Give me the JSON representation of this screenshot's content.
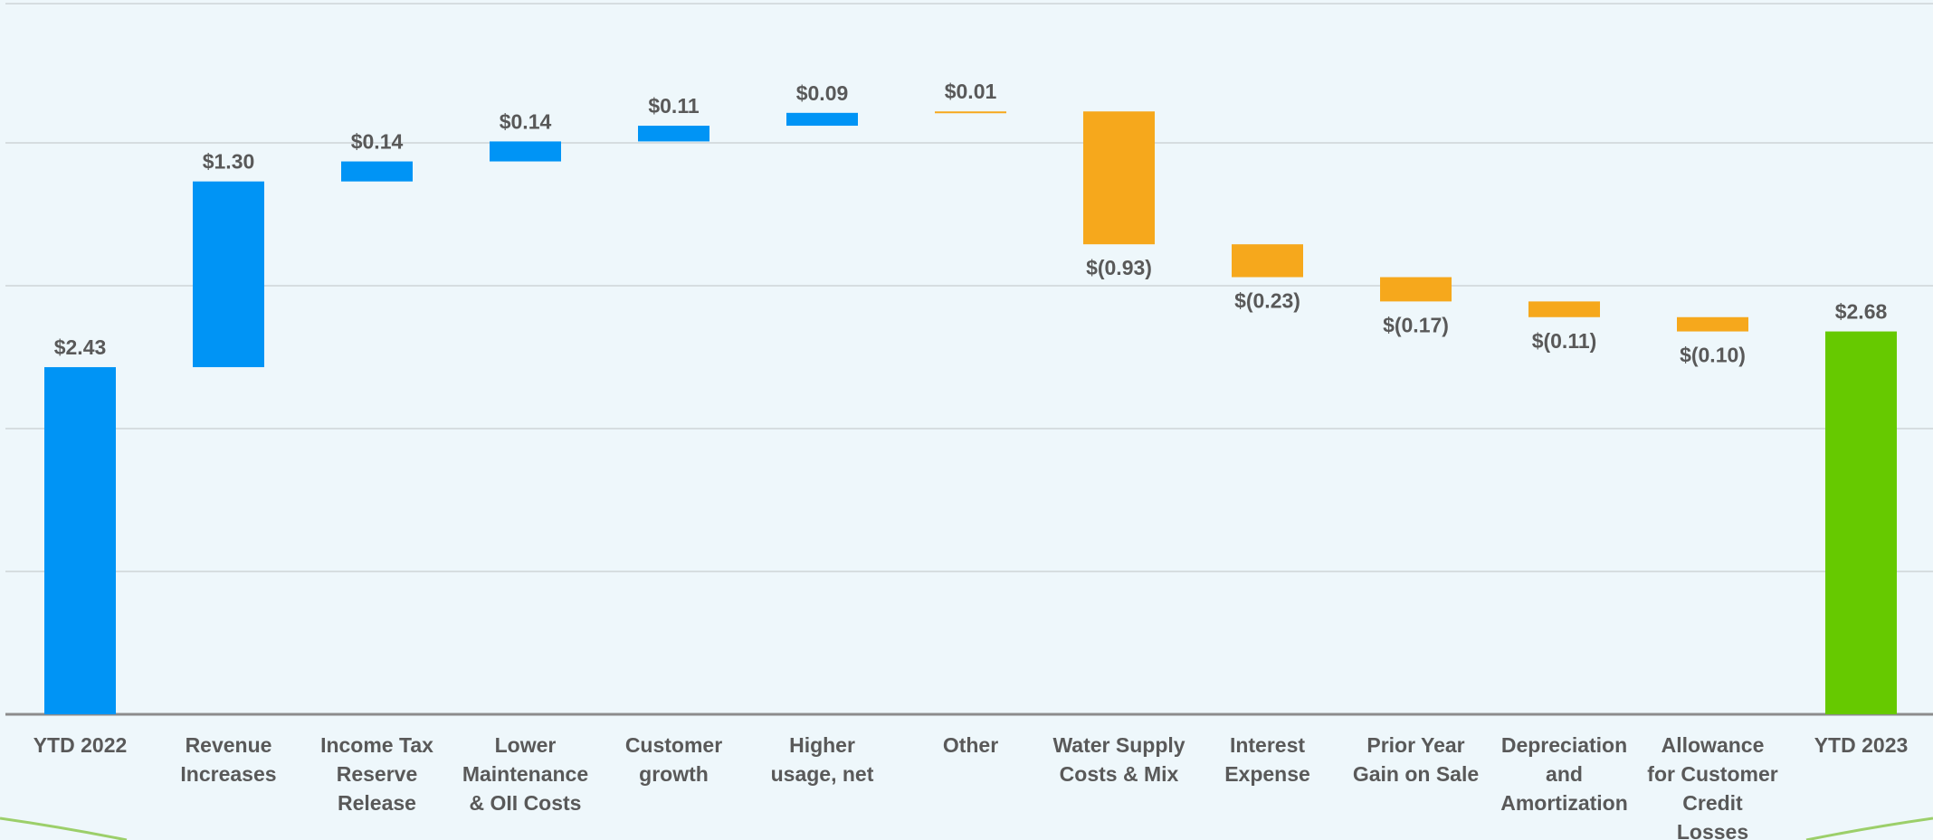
{
  "chart_data": {
    "type": "waterfall",
    "categories": [
      "YTD 2022",
      "Revenue Increases",
      "Income Tax Reserve Release",
      "Lower Maintenance & OII Costs",
      "Customer growth",
      "Higher usage, net",
      "Other",
      "Water Supply Costs & Mix",
      "Interest Expense",
      "Prior Year Gain on Sale",
      "Depreciation and Amortization",
      "Allowance for Customer Credit Losses",
      "YTD 2023"
    ],
    "values": [
      2.43,
      1.3,
      0.14,
      0.14,
      0.11,
      0.09,
      0.01,
      -0.93,
      -0.23,
      -0.17,
      -0.11,
      -0.1,
      2.68
    ],
    "value_labels": [
      "$2.43",
      "$1.30",
      "$0.14",
      "$0.14",
      "$0.11",
      "$0.09",
      "$0.01",
      "$(0.93)",
      "$(0.23)",
      "$(0.17)",
      "$(0.11)",
      "$(0.10)",
      "$2.68"
    ],
    "colors": [
      "#0094f5",
      "#0094f5",
      "#0094f5",
      "#0094f5",
      "#0094f5",
      "#0094f5",
      "#f6a81c",
      "#f6a81c",
      "#f6a81c",
      "#f6a81c",
      "#f6a81c",
      "#f6a81c",
      "#66c900"
    ],
    "ylim": [
      0,
      5
    ],
    "yticks": [
      0,
      1,
      2,
      3,
      4,
      5
    ],
    "grid": true
  }
}
